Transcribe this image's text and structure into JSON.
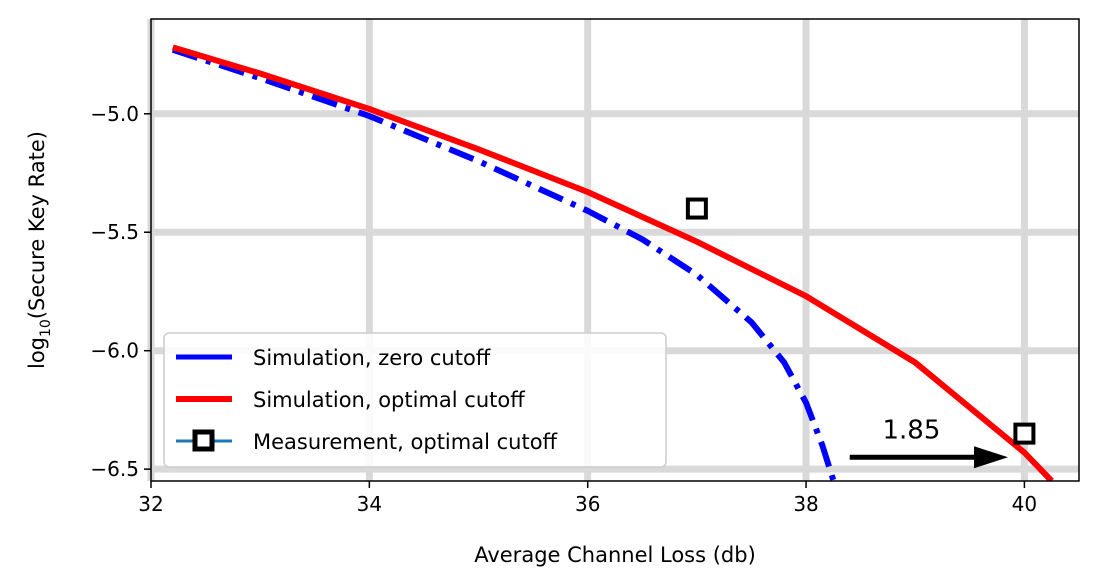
{
  "chart_data": {
    "type": "line",
    "title": "",
    "xlabel": "Average Channel Loss (db)",
    "ylabel_main": "log",
    "ylabel_sub": "10",
    "ylabel_rest": "(Secure Key Rate)",
    "xlim": [
      32,
      40.5
    ],
    "ylim": [
      -6.55,
      -4.6
    ],
    "x_ticks": [
      32,
      34,
      36,
      38,
      40
    ],
    "x_tick_labels": [
      "32",
      "34",
      "36",
      "38",
      "40"
    ],
    "y_ticks": [
      -5.0,
      -5.5,
      -6.0,
      -6.5
    ],
    "y_tick_labels": [
      "−5.0",
      "−5.5",
      "−6.0",
      "−6.5"
    ],
    "grid": true,
    "legend_position": "lower-left",
    "colors": {
      "zero_cutoff": "#0000ff",
      "optimal_cutoff": "#ff0000",
      "measurement_line": "#1f77b4",
      "grid": "#d9d9d9"
    },
    "series": [
      {
        "name": "Simulation, zero cutoff",
        "style": "dashdot",
        "x": [
          32.2,
          33.0,
          34.0,
          35.0,
          36.0,
          36.5,
          37.0,
          37.5,
          37.8,
          38.0,
          38.15,
          38.3
        ],
        "y": [
          -4.73,
          -4.85,
          -5.01,
          -5.2,
          -5.41,
          -5.53,
          -5.68,
          -5.88,
          -6.05,
          -6.22,
          -6.4,
          -6.62
        ]
      },
      {
        "name": "Simulation, optimal cutoff",
        "style": "solid",
        "x": [
          32.2,
          33.0,
          34.0,
          35.0,
          36.0,
          37.0,
          38.0,
          39.0,
          40.0,
          40.25
        ],
        "y": [
          -4.72,
          -4.83,
          -4.98,
          -5.15,
          -5.33,
          -5.54,
          -5.77,
          -6.05,
          -6.43,
          -6.55
        ]
      },
      {
        "name": "Measurement, optimal cutoff",
        "style": "markers",
        "x": [
          37.0,
          40.0
        ],
        "y": [
          -5.4,
          -6.35
        ]
      }
    ],
    "annotation": {
      "text": "1.85",
      "arrow_from": [
        38.4,
        -6.45
      ],
      "arrow_to": [
        39.85,
        -6.45
      ],
      "text_at": [
        38.7,
        -6.37
      ]
    }
  }
}
